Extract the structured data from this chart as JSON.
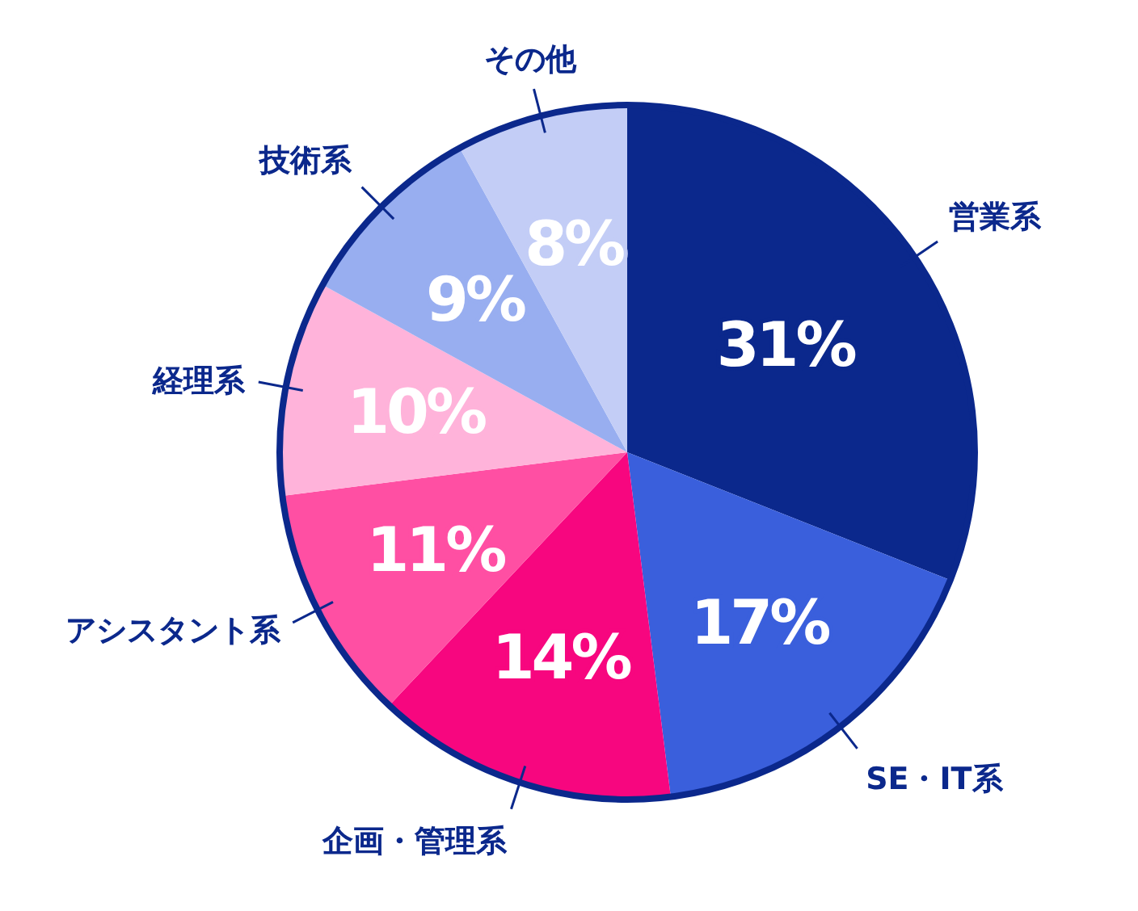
{
  "chart_data": {
    "type": "pie",
    "categories": [
      "営業系",
      "SE・IT系",
      "企画・管理系",
      "アシスタント系",
      "経理系",
      "技術系",
      "その他"
    ],
    "values": [
      31,
      17,
      14,
      11,
      10,
      9,
      8
    ],
    "colors": [
      "#0b288c",
      "#3a5fdc",
      "#f7067f",
      "#ff4fa3",
      "#ffb3da",
      "#98aef0",
      "#c3cdf6"
    ],
    "value_labels": [
      "31%",
      "17%",
      "14%",
      "11%",
      "10%",
      "9%",
      "8%"
    ],
    "legend": false
  }
}
